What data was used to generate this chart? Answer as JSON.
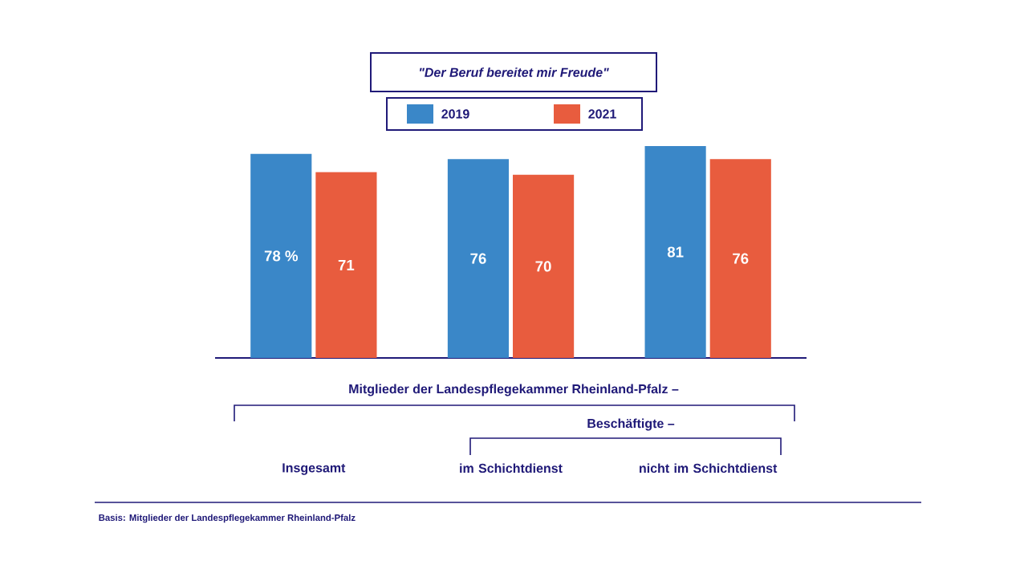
{
  "chart_data": {
    "type": "bar",
    "title": "\"Der Beruf bereitet mir Freude\"",
    "categories": [
      "Insgesamt",
      "im Schichtdienst",
      "nicht im Schichtdienst"
    ],
    "series": [
      {
        "name": "2019",
        "color": "#3a87c8",
        "values": [
          78,
          76,
          81
        ],
        "value_labels": [
          "78 %",
          "76",
          "81"
        ]
      },
      {
        "name": "2021",
        "color": "#e85c3e",
        "values": [
          71,
          70,
          76
        ],
        "value_labels": [
          "71",
          "70",
          "76"
        ]
      }
    ],
    "legend": "top",
    "annotations": [
      "Mitglieder der Landespflegekammer Rheinland-Pfalz –",
      "Beschäftigte –",
      "Basis: Mitglieder der Landespflegekammer Rheinland-Pfalz"
    ]
  }
}
